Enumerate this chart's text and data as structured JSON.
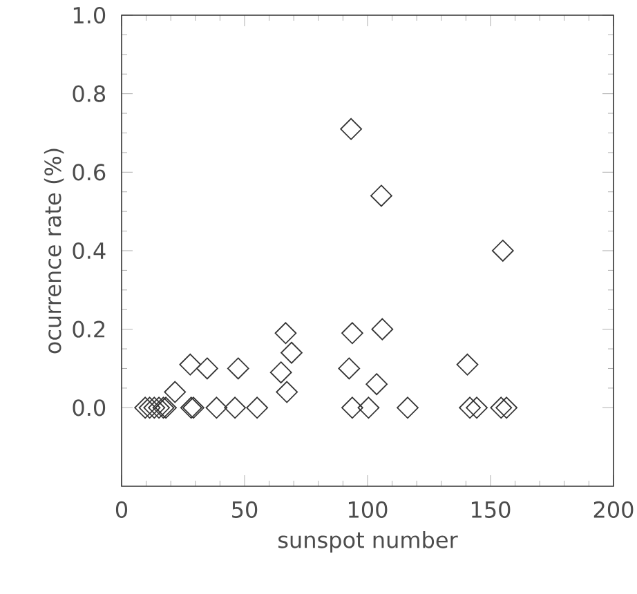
{
  "chart_data": {
    "type": "scatter",
    "xlabel": "sunspot number",
    "ylabel": "ocurrence rate (%)",
    "xlim": [
      0,
      200
    ],
    "xticks": [
      0,
      50,
      100,
      150,
      200
    ],
    "ylim": [
      -0.2,
      1.0
    ],
    "yticks": [
      {
        "value": 0,
        "label": "0.0"
      },
      {
        "value": 0.2,
        "label": "0.2"
      },
      {
        "value": 0.4,
        "label": "0.4"
      },
      {
        "value": 0.6,
        "label": "0.6"
      },
      {
        "value": 0.8,
        "label": "0.8"
      },
      {
        "value": 1.0,
        "label": "1.0"
      }
    ],
    "marker": "diamond",
    "series": [
      {
        "color": "#333333",
        "x": [
          93.3,
          105.6,
          155,
          66.7,
          69.1,
          93.8,
          106,
          27.9,
          34.8,
          47.4,
          64.8,
          92.5,
          140.6,
          21.7,
          67.2,
          103.7,
          9.6,
          11.4,
          13.3,
          15.2,
          17.0,
          18.0,
          28.3,
          29.2,
          38.6,
          46.1,
          55.1,
          93.8,
          100.4,
          116.3,
          141.6,
          144.4,
          154.3,
          156.5
        ],
        "values": [
          0.71,
          0.54,
          0.4,
          0.19,
          0.14,
          0.19,
          0.2,
          0.11,
          0.1,
          0.1,
          0.09,
          0.1,
          0.11,
          0.04,
          0.04,
          0.06,
          0,
          0,
          0,
          0,
          0,
          0,
          0,
          0,
          0,
          0,
          0,
          0,
          0,
          0,
          0,
          0,
          0,
          0
        ]
      }
    ]
  }
}
